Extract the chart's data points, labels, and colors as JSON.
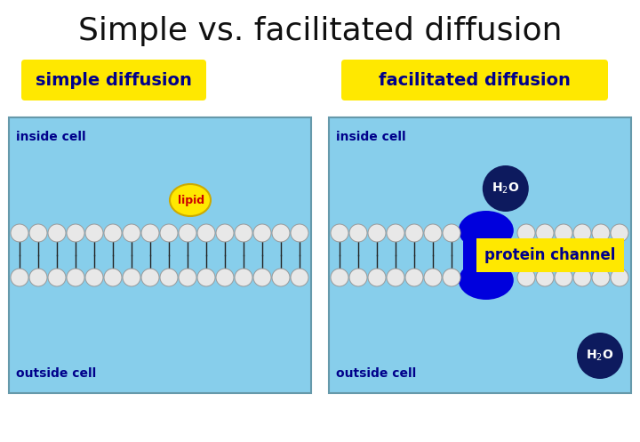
{
  "title": "Simple vs. facilitated diffusion",
  "title_fontsize": 26,
  "bg_color": "#ffffff",
  "panel_bg": "#87CEEB",
  "label_simple": "simple diffusion",
  "label_facilitated": "facilitated diffusion",
  "label_box_color": "#FFE800",
  "label_fontsize": 14,
  "inside_cell_label": "inside cell",
  "outside_cell_label": "outside cell",
  "cell_label_fontsize": 10,
  "lipid_label": "lipid",
  "lipid_color": "#FFE800",
  "lipid_text_color": "#cc0000",
  "h2o_color": "#0d1a5e",
  "protein_channel_color": "#0000dd",
  "protein_channel_label": "protein channel",
  "protein_label_box": "#FFE800",
  "head_color": "#e8e8e8",
  "head_outline": "#999999",
  "tail_color": "#222222",
  "label_text_color": "#00008B",
  "cell_text_color": "#00008B"
}
